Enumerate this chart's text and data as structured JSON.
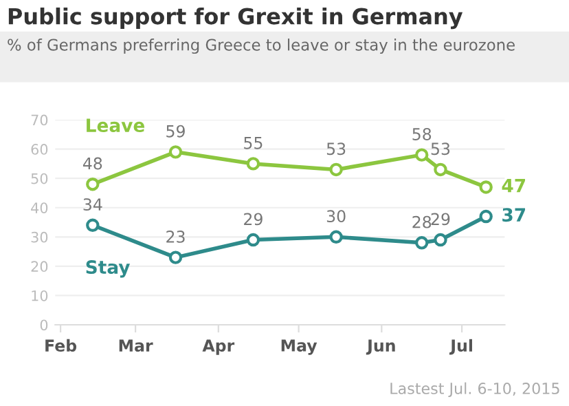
{
  "chart_data": {
    "type": "line",
    "title": "Public support for Grexit in Germany",
    "subtitle": "% of Germans preferring Greece to leave or stay in the eurozone",
    "x": [
      "2015-02-13",
      "2015-03-16",
      "2015-04-14",
      "2015-05-15",
      "2015-06-16",
      "2015-06-23",
      "2015-07-10"
    ],
    "series": [
      {
        "name": "Leave",
        "color": "#8cc63f",
        "values": [
          48,
          59,
          55,
          53,
          58,
          53,
          47
        ]
      },
      {
        "name": "Stay",
        "color": "#2e8b8b",
        "values": [
          34,
          23,
          29,
          30,
          28,
          29,
          37
        ]
      }
    ],
    "ylim": [
      0,
      70
    ],
    "yticks": [
      0,
      10,
      20,
      30,
      40,
      50,
      60,
      70
    ],
    "xlim": [
      "2015-01-30",
      "2015-07-17"
    ],
    "xticks": [
      {
        "value": "2015-02-01",
        "label": "Feb"
      },
      {
        "value": "2015-03-01",
        "label": "Mar"
      },
      {
        "value": "2015-04-01",
        "label": "Apr"
      },
      {
        "value": "2015-05-01",
        "label": "May"
      },
      {
        "value": "2015-06-01",
        "label": "Jun"
      },
      {
        "value": "2015-07-01",
        "label": "Jul"
      }
    ],
    "grid": "y",
    "marker": "circle",
    "line_style": "solid",
    "data_labels": true,
    "annotations": [
      "Lastest Jul. 6-10, 2015"
    ]
  }
}
